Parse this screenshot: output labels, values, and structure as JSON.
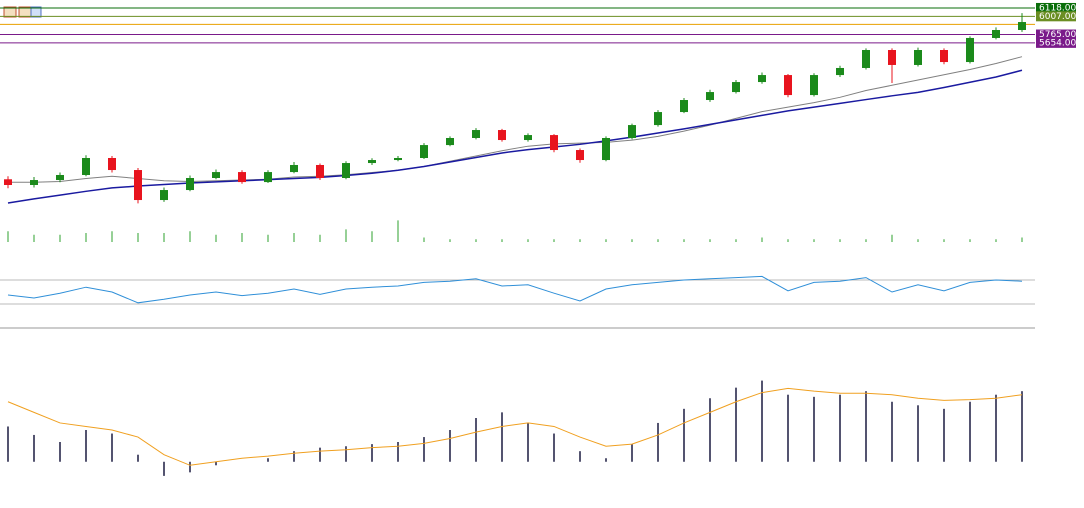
{
  "chart_data": [
    {
      "type": "candlestick",
      "ylim": [
        3365,
        6224
      ],
      "up_color": "#1b8a1b",
      "down_color": "#e8141e",
      "open": [
        3840,
        3764,
        3830,
        3897,
        4123,
        3963,
        3564,
        3697,
        3857,
        3936,
        3803,
        3936,
        4030,
        3857,
        4056,
        4096,
        4123,
        4295,
        4389,
        4495,
        4362,
        4428,
        4229,
        4096,
        4389,
        4561,
        4734,
        4894,
        5000,
        5133,
        5226,
        4960,
        5226,
        5320,
        5559,
        5360,
        5559,
        5399,
        5719,
        5825
      ],
      "high": [
        3880,
        3870,
        3930,
        4160,
        4150,
        3990,
        3730,
        3890,
        3970,
        3960,
        3960,
        4070,
        4050,
        4080,
        4120,
        4150,
        4320,
        4410,
        4520,
        4510,
        4450,
        4440,
        4250,
        4410,
        4580,
        4760,
        4920,
        5030,
        5160,
        5260,
        5240,
        5250,
        5350,
        5580,
        5580,
        5590,
        5580,
        5740,
        5860,
        6050
      ],
      "low": [
        3720,
        3730,
        3800,
        3880,
        3930,
        3520,
        3540,
        3680,
        3840,
        3780,
        3790,
        3920,
        3830,
        3840,
        4030,
        4080,
        4110,
        4280,
        4370,
        4340,
        4340,
        4200,
        4060,
        4080,
        4370,
        4540,
        4720,
        4870,
        4980,
        5110,
        4930,
        4940,
        5200,
        5300,
        5120,
        5340,
        5370,
        5380,
        5700,
        5800
      ],
      "close": [
        3764,
        3830,
        3897,
        4123,
        3963,
        3564,
        3697,
        3857,
        3936,
        3803,
        3936,
        4030,
        3857,
        4056,
        4096,
        4123,
        4295,
        4389,
        4495,
        4362,
        4428,
        4229,
        4096,
        4389,
        4561,
        4734,
        4894,
        5000,
        5133,
        5226,
        4960,
        5226,
        5320,
        5559,
        5360,
        5559,
        5399,
        5719,
        5825,
        5931
      ],
      "lines": [
        {
          "color": "#808080",
          "values": [
            3800,
            3800,
            3810,
            3850,
            3880,
            3850,
            3820,
            3810,
            3820,
            3830,
            3840,
            3870,
            3880,
            3900,
            3930,
            3960,
            4010,
            4080,
            4150,
            4220,
            4280,
            4310,
            4320,
            4330,
            4360,
            4410,
            4480,
            4560,
            4650,
            4740,
            4800,
            4860,
            4930,
            5020,
            5090,
            5160,
            5230,
            5300,
            5380,
            5470
          ]
        },
        {
          "color": "#1a1aa0",
          "values": [
            3524,
            3580,
            3630,
            3680,
            3725,
            3750,
            3770,
            3790,
            3805,
            3820,
            3835,
            3850,
            3865,
            3890,
            3920,
            3960,
            4010,
            4070,
            4130,
            4190,
            4235,
            4270,
            4305,
            4350,
            4400,
            4455,
            4510,
            4570,
            4630,
            4690,
            4750,
            4800,
            4850,
            4900,
            4950,
            4995,
            5060,
            5130,
            5200,
            5290
          ]
        }
      ],
      "levels": [
        {
          "value": 6118,
          "label": "6118.00",
          "color": "#0a6e0a"
        },
        {
          "value": 6007,
          "label": "6007.00",
          "color": "#6b8e23"
        },
        {
          "value": 5900,
          "color": "#e8a000"
        },
        {
          "value": 5765,
          "label": "5765.00",
          "color": "#7a1a8a"
        },
        {
          "value": 5654,
          "label": "5654.00",
          "color": "#7a1a8a"
        }
      ]
    },
    {
      "type": "bar",
      "ylim": [
        0,
        30
      ],
      "color": "#2ca02c",
      "values": [
        12,
        8,
        8,
        10,
        12,
        10,
        10,
        12,
        8,
        10,
        8,
        10,
        8,
        14,
        12,
        24,
        5,
        3,
        3,
        3,
        3,
        3,
        3,
        3,
        3,
        3,
        3,
        3,
        3,
        5,
        3,
        3,
        3,
        3,
        8,
        3,
        3,
        3,
        3,
        5
      ]
    },
    {
      "type": "line",
      "ylim": [
        0,
        100
      ],
      "color": "#2f8fd8",
      "levels": [
        30,
        70
      ],
      "values": [
        45,
        40,
        48,
        58,
        50,
        32,
        38,
        45,
        50,
        44,
        48,
        55,
        46,
        55,
        58,
        60,
        66,
        68,
        72,
        60,
        62,
        48,
        35,
        55,
        62,
        66,
        70,
        72,
        74,
        76,
        52,
        66,
        68,
        74,
        50,
        62,
        52,
        66,
        70,
        68
      ]
    },
    {
      "type": "histogram",
      "ylim": [
        -40,
        130
      ],
      "color": "#1a1a40",
      "signal_color": "#f0a020",
      "values": [
        50,
        38,
        28,
        45,
        40,
        10,
        -20,
        -15,
        -5,
        0,
        5,
        15,
        20,
        22,
        25,
        28,
        35,
        45,
        62,
        70,
        55,
        40,
        15,
        5,
        25,
        55,
        75,
        90,
        105,
        115,
        95,
        92,
        95,
        100,
        85,
        80,
        75,
        85,
        95,
        100
      ],
      "signal": [
        85,
        70,
        55,
        50,
        45,
        35,
        10,
        -5,
        0,
        5,
        8,
        12,
        15,
        17,
        20,
        22,
        26,
        33,
        42,
        50,
        55,
        50,
        35,
        22,
        25,
        38,
        55,
        70,
        85,
        98,
        104,
        100,
        97,
        97,
        95,
        90,
        87,
        88,
        90,
        95
      ]
    }
  ]
}
